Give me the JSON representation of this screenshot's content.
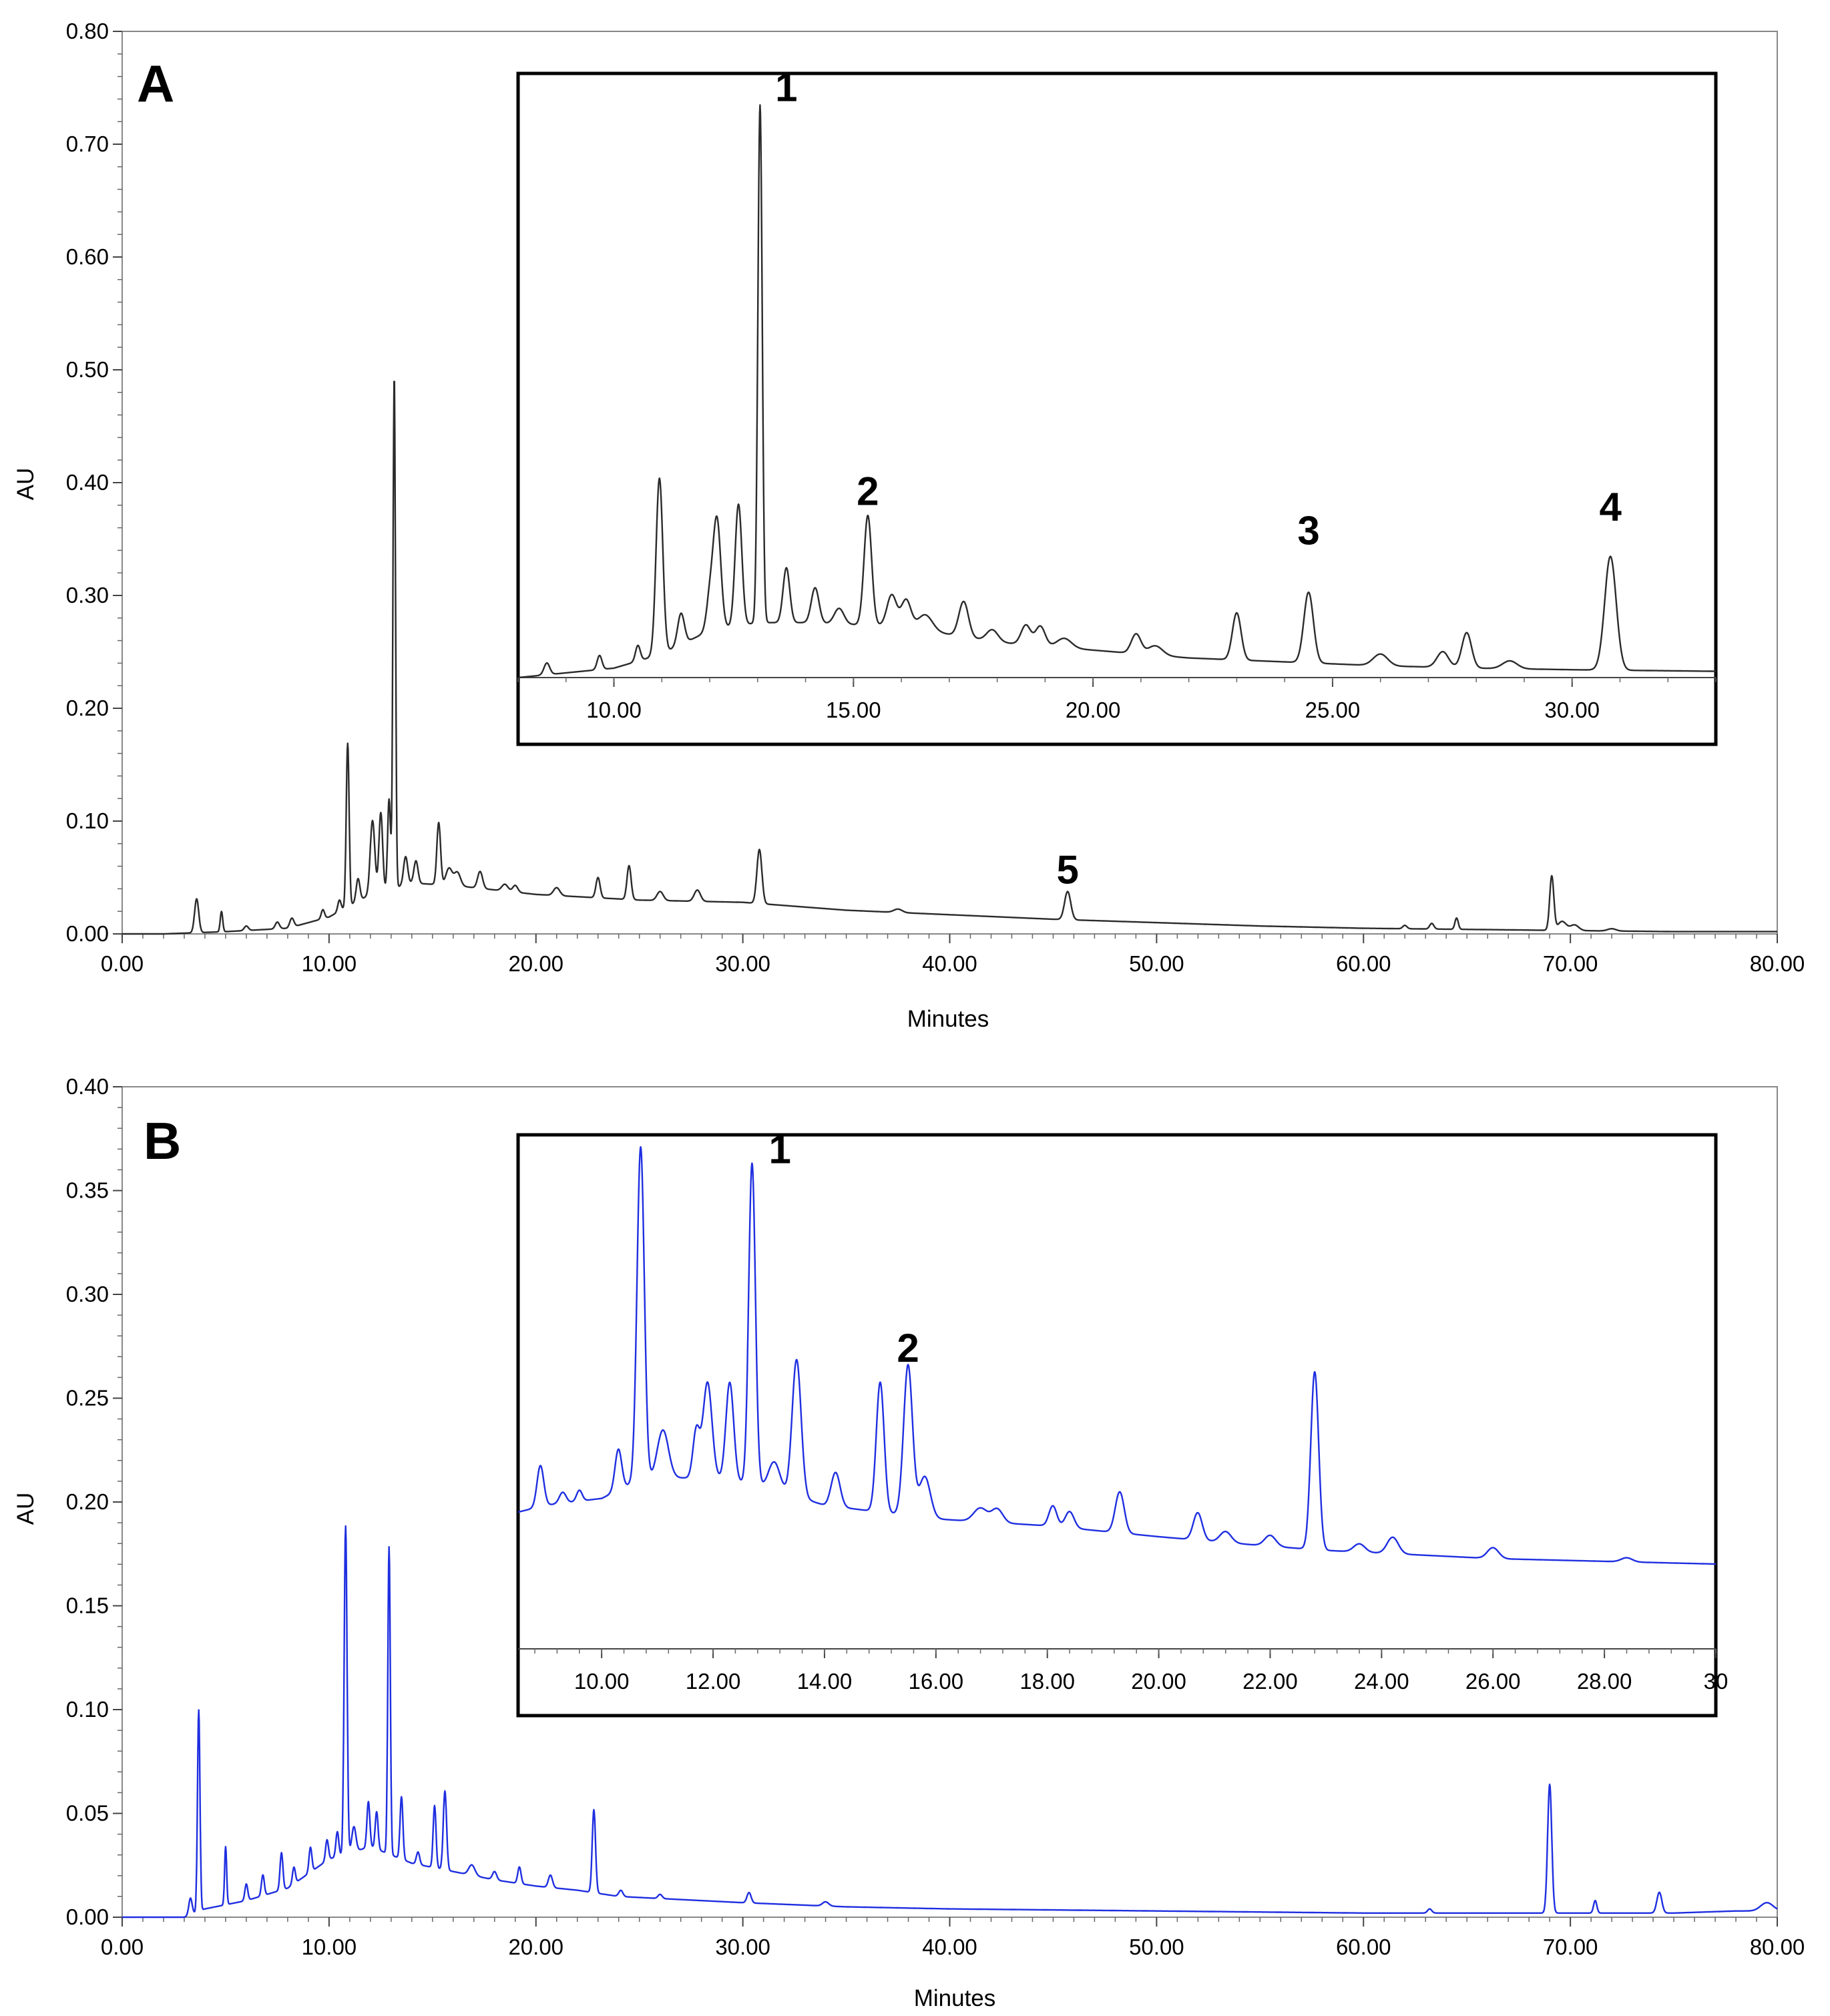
{
  "chart_data": [
    {
      "type": "line",
      "panel": "A",
      "xlabel": "Minutes",
      "ylabel": "AU",
      "xlim": [
        0,
        80
      ],
      "ylim": [
        0,
        0.8
      ],
      "line_color": "#2b2b2b",
      "x_ticks": [
        "0.00",
        "10.00",
        "20.00",
        "30.00",
        "40.00",
        "50.00",
        "60.00",
        "70.00",
        "80.00"
      ],
      "y_ticks": [
        "0.00",
        "0.10",
        "0.20",
        "0.30",
        "0.40",
        "0.50",
        "0.60",
        "0.70",
        "0.80"
      ],
      "baseline": [
        [
          0,
          0.0
        ],
        [
          2,
          0.0
        ],
        [
          5,
          0.002
        ],
        [
          8,
          0.005
        ],
        [
          10,
          0.015
        ],
        [
          12,
          0.035
        ],
        [
          14,
          0.045
        ],
        [
          16,
          0.043
        ],
        [
          20,
          0.035
        ],
        [
          25,
          0.03
        ],
        [
          30,
          0.028
        ],
        [
          35,
          0.021
        ],
        [
          40,
          0.017
        ],
        [
          45,
          0.013
        ],
        [
          50,
          0.01
        ],
        [
          55,
          0.007
        ],
        [
          60,
          0.005
        ],
        [
          65,
          0.004
        ],
        [
          70,
          0.003
        ],
        [
          75,
          0.002
        ],
        [
          80,
          0.002
        ]
      ],
      "peaks": [
        [
          3.6,
          0.03,
          0.1
        ],
        [
          4.8,
          0.018,
          0.06
        ],
        [
          6.0,
          0.004,
          0.1
        ],
        [
          7.5,
          0.006,
          0.1
        ],
        [
          8.2,
          0.008,
          0.1
        ],
        [
          9.7,
          0.008,
          0.08
        ],
        [
          10.5,
          0.01,
          0.08
        ],
        [
          10.9,
          0.145,
          0.07
        ],
        [
          11.4,
          0.02,
          0.09
        ],
        [
          12.1,
          0.065,
          0.11
        ],
        [
          12.5,
          0.07,
          0.09
        ],
        [
          12.9,
          0.08,
          0.07
        ],
        [
          13.15,
          0.455,
          0.06
        ],
        [
          13.7,
          0.025,
          0.1
        ],
        [
          14.2,
          0.02,
          0.1
        ],
        [
          15.3,
          0.055,
          0.09
        ],
        [
          15.8,
          0.015,
          0.15
        ],
        [
          16.2,
          0.012,
          0.15
        ],
        [
          17.3,
          0.015,
          0.12
        ],
        [
          18.5,
          0.006,
          0.15
        ],
        [
          19.0,
          0.006,
          0.12
        ],
        [
          21.0,
          0.007,
          0.15
        ],
        [
          23.0,
          0.018,
          0.1
        ],
        [
          24.5,
          0.03,
          0.1
        ],
        [
          26.0,
          0.008,
          0.15
        ],
        [
          27.8,
          0.01,
          0.15
        ],
        [
          30.8,
          0.048,
          0.12
        ],
        [
          37.5,
          0.003,
          0.2
        ],
        [
          45.7,
          0.025,
          0.15
        ],
        [
          62.0,
          0.003,
          0.1
        ],
        [
          63.3,
          0.005,
          0.1
        ],
        [
          64.5,
          0.01,
          0.08
        ],
        [
          69.1,
          0.048,
          0.1
        ],
        [
          69.6,
          0.008,
          0.2
        ],
        [
          70.2,
          0.005,
          0.2
        ],
        [
          72.0,
          0.002,
          0.2
        ]
      ],
      "annotations": [
        {
          "text": "5",
          "x": 45.7,
          "y": 0.04
        }
      ],
      "inset": {
        "xlim": [
          8,
          33
        ],
        "x_ticks": [
          "10.00",
          "15.00",
          "20.00",
          "25.00",
          "30.00"
        ],
        "x_tick_values": [
          10,
          15,
          20,
          25,
          30
        ],
        "baseline": [
          [
            8,
            0.0
          ],
          [
            10,
            0.012
          ],
          [
            11,
            0.03
          ],
          [
            12,
            0.06
          ],
          [
            13,
            0.07
          ],
          [
            14,
            0.07
          ],
          [
            16,
            0.065
          ],
          [
            18,
            0.045
          ],
          [
            20,
            0.035
          ],
          [
            22,
            0.025
          ],
          [
            24,
            0.02
          ],
          [
            26,
            0.015
          ],
          [
            28,
            0.012
          ],
          [
            30,
            0.01
          ],
          [
            33,
            0.008
          ]
        ],
        "peaks": [
          [
            8.6,
            0.015,
            0.06
          ],
          [
            9.7,
            0.018,
            0.05
          ],
          [
            10.5,
            0.02,
            0.05
          ],
          [
            10.95,
            0.225,
            0.07
          ],
          [
            11.4,
            0.04,
            0.07
          ],
          [
            12.0,
            0.04,
            0.07
          ],
          [
            12.15,
            0.14,
            0.08
          ],
          [
            12.6,
            0.155,
            0.07
          ],
          [
            13.05,
            0.66,
            0.045
          ],
          [
            13.6,
            0.07,
            0.07
          ],
          [
            14.2,
            0.045,
            0.08
          ],
          [
            14.7,
            0.02,
            0.1
          ],
          [
            15.3,
            0.14,
            0.08
          ],
          [
            15.8,
            0.04,
            0.1
          ],
          [
            16.1,
            0.035,
            0.1
          ],
          [
            16.5,
            0.02,
            0.15
          ],
          [
            17.3,
            0.045,
            0.1
          ],
          [
            17.9,
            0.015,
            0.12
          ],
          [
            18.6,
            0.025,
            0.1
          ],
          [
            18.9,
            0.025,
            0.1
          ],
          [
            19.4,
            0.012,
            0.15
          ],
          [
            20.9,
            0.025,
            0.1
          ],
          [
            21.3,
            0.012,
            0.15
          ],
          [
            23.0,
            0.06,
            0.09
          ],
          [
            24.5,
            0.09,
            0.1
          ],
          [
            26.0,
            0.015,
            0.15
          ],
          [
            27.3,
            0.02,
            0.12
          ],
          [
            27.8,
            0.045,
            0.1
          ],
          [
            28.7,
            0.01,
            0.15
          ],
          [
            30.8,
            0.145,
            0.12
          ]
        ],
        "annotations": [
          {
            "text": "1",
            "x": 13.6,
            "y": 0.735
          },
          {
            "text": "2",
            "x": 15.3,
            "y": 0.22
          },
          {
            "text": "3",
            "x": 24.5,
            "y": 0.17
          },
          {
            "text": "4",
            "x": 30.8,
            "y": 0.2
          }
        ]
      }
    },
    {
      "type": "line",
      "panel": "B",
      "xlabel": "Minutes",
      "ylabel": "AU",
      "xlim": [
        0,
        80
      ],
      "ylim": [
        0,
        0.4
      ],
      "line_color": "#1f2fe0",
      "x_ticks": [
        "0.00",
        "10.00",
        "20.00",
        "30.00",
        "40.00",
        "50.00",
        "60.00",
        "70.00",
        "80.00"
      ],
      "y_ticks": [
        "0.00",
        "0.05",
        "0.10",
        "0.15",
        "0.20",
        "0.25",
        "0.30",
        "0.35",
        "0.40"
      ],
      "baseline": [
        [
          0,
          0.0
        ],
        [
          3,
          0.0
        ],
        [
          4,
          0.004
        ],
        [
          6,
          0.008
        ],
        [
          8,
          0.014
        ],
        [
          10,
          0.028
        ],
        [
          12,
          0.034
        ],
        [
          14,
          0.026
        ],
        [
          16,
          0.022
        ],
        [
          18,
          0.018
        ],
        [
          20,
          0.015
        ],
        [
          22,
          0.013
        ],
        [
          24,
          0.01
        ],
        [
          28,
          0.008
        ],
        [
          30,
          0.007
        ],
        [
          35,
          0.005
        ],
        [
          40,
          0.004
        ],
        [
          50,
          0.003
        ],
        [
          60,
          0.002
        ],
        [
          68,
          0.002
        ],
        [
          75,
          0.002
        ],
        [
          78,
          0.003
        ],
        [
          80,
          0.003
        ]
      ],
      "peaks": [
        [
          3.3,
          0.008,
          0.08
        ],
        [
          3.7,
          0.097,
          0.06
        ],
        [
          5.0,
          0.028,
          0.05
        ],
        [
          6.0,
          0.008,
          0.07
        ],
        [
          6.8,
          0.01,
          0.07
        ],
        [
          7.7,
          0.018,
          0.07
        ],
        [
          8.3,
          0.008,
          0.07
        ],
        [
          9.1,
          0.012,
          0.07
        ],
        [
          9.9,
          0.01,
          0.07
        ],
        [
          10.4,
          0.012,
          0.07
        ],
        [
          10.8,
          0.158,
          0.07
        ],
        [
          11.2,
          0.012,
          0.1
        ],
        [
          11.9,
          0.022,
          0.07
        ],
        [
          12.3,
          0.018,
          0.07
        ],
        [
          12.9,
          0.148,
          0.06
        ],
        [
          13.5,
          0.03,
          0.07
        ],
        [
          14.3,
          0.006,
          0.08
        ],
        [
          15.1,
          0.03,
          0.07
        ],
        [
          15.6,
          0.038,
          0.08
        ],
        [
          16.9,
          0.005,
          0.15
        ],
        [
          18.0,
          0.004,
          0.1
        ],
        [
          19.2,
          0.008,
          0.08
        ],
        [
          20.7,
          0.006,
          0.1
        ],
        [
          22.8,
          0.04,
          0.08
        ],
        [
          24.1,
          0.003,
          0.1
        ],
        [
          26.0,
          0.002,
          0.1
        ],
        [
          30.3,
          0.005,
          0.1
        ],
        [
          34.0,
          0.002,
          0.15
        ],
        [
          63.2,
          0.002,
          0.1
        ],
        [
          69.0,
          0.062,
          0.1
        ],
        [
          71.2,
          0.006,
          0.08
        ],
        [
          74.3,
          0.01,
          0.12
        ],
        [
          79.5,
          0.004,
          0.3
        ]
      ],
      "annotations": [],
      "inset": {
        "xlim": [
          8.5,
          30
        ],
        "x_ticks": [
          "10.00",
          "12.00",
          "14.00",
          "16.00",
          "18.00",
          "20.00",
          "22.00",
          "24.00",
          "26.00",
          "28.00",
          "30"
        ],
        "x_tick_values": [
          10,
          12,
          14,
          16,
          18,
          20,
          22,
          24,
          26,
          28,
          30
        ],
        "baseline": [
          [
            8.5,
            0.1
          ],
          [
            9,
            0.105
          ],
          [
            10,
            0.11
          ],
          [
            10.5,
            0.12
          ],
          [
            11,
            0.125
          ],
          [
            12,
            0.125
          ],
          [
            13,
            0.118
          ],
          [
            14,
            0.105
          ],
          [
            15,
            0.1
          ],
          [
            16,
            0.095
          ],
          [
            18,
            0.09
          ],
          [
            20,
            0.082
          ],
          [
            22,
            0.075
          ],
          [
            23,
            0.072
          ],
          [
            24,
            0.07
          ],
          [
            26,
            0.066
          ],
          [
            28,
            0.064
          ],
          [
            30,
            0.062
          ]
        ],
        "peaks": [
          [
            8.9,
            0.03,
            0.06
          ],
          [
            9.3,
            0.008,
            0.06
          ],
          [
            9.6,
            0.008,
            0.05
          ],
          [
            10.3,
            0.03,
            0.06
          ],
          [
            10.7,
            0.245,
            0.065
          ],
          [
            11.1,
            0.035,
            0.1
          ],
          [
            11.7,
            0.035,
            0.06
          ],
          [
            11.9,
            0.07,
            0.08
          ],
          [
            12.3,
            0.072,
            0.07
          ],
          [
            12.7,
            0.235,
            0.06
          ],
          [
            13.1,
            0.02,
            0.1
          ],
          [
            13.5,
            0.1,
            0.08
          ],
          [
            14.2,
            0.025,
            0.08
          ],
          [
            15.0,
            0.095,
            0.07
          ],
          [
            15.5,
            0.11,
            0.08
          ],
          [
            15.8,
            0.03,
            0.1
          ],
          [
            16.8,
            0.01,
            0.12
          ],
          [
            17.1,
            0.01,
            0.1
          ],
          [
            18.1,
            0.015,
            0.07
          ],
          [
            18.4,
            0.012,
            0.08
          ],
          [
            19.3,
            0.03,
            0.08
          ],
          [
            20.7,
            0.02,
            0.08
          ],
          [
            21.2,
            0.008,
            0.1
          ],
          [
            22.0,
            0.008,
            0.1
          ],
          [
            22.8,
            0.13,
            0.07
          ],
          [
            23.6,
            0.006,
            0.1
          ],
          [
            24.2,
            0.012,
            0.1
          ],
          [
            26.0,
            0.008,
            0.1
          ],
          [
            28.4,
            0.003,
            0.1
          ]
        ],
        "annotations": [
          {
            "text": "1",
            "x": 13.2,
            "y": 0.355
          },
          {
            "text": "2",
            "x": 15.5,
            "y": 0.21
          }
        ]
      }
    }
  ],
  "panels": {
    "a": {
      "letter": "A",
      "xlabel": "Minutes",
      "ylabel": "AU"
    },
    "b": {
      "letter": "B",
      "xlabel": "Minutes",
      "ylabel": "AU"
    }
  }
}
